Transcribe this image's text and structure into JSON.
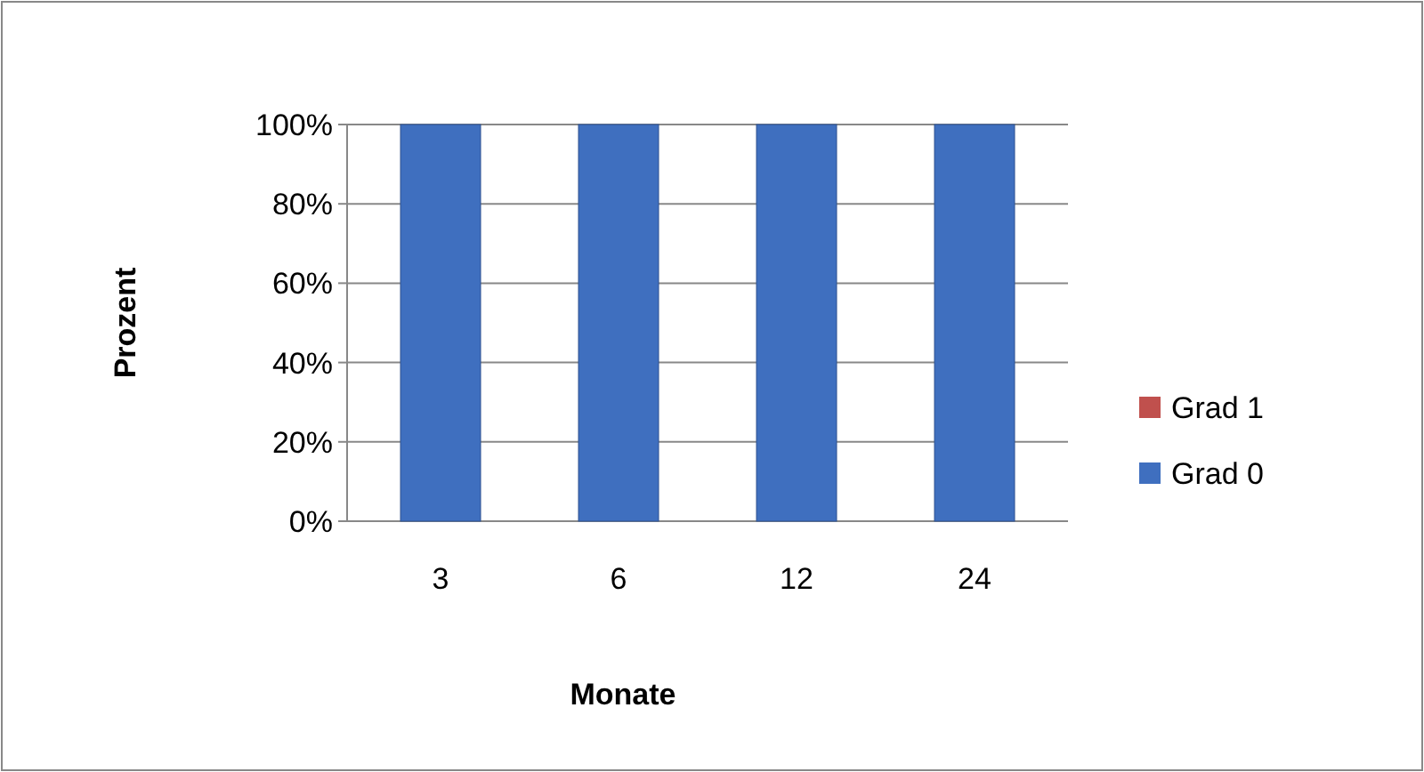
{
  "chart_data": {
    "type": "bar",
    "xlabel": "Monate",
    "ylabel": "Prozent",
    "categories": [
      "3",
      "6",
      "12",
      "24"
    ],
    "stacked": true,
    "series": [
      {
        "name": "Grad 0",
        "color": "#3f6fbf",
        "values": [
          100,
          100,
          100,
          100
        ]
      },
      {
        "name": "Grad 1",
        "color": "#c0504d",
        "values": [
          0,
          0,
          0,
          0
        ]
      }
    ],
    "ylim": [
      0,
      100
    ],
    "yticks": [
      {
        "value": 0,
        "label": "0%"
      },
      {
        "value": 20,
        "label": "20%"
      },
      {
        "value": 40,
        "label": "40%"
      },
      {
        "value": 60,
        "label": "60%"
      },
      {
        "value": 80,
        "label": "80%"
      },
      {
        "value": 100,
        "label": "100%"
      }
    ],
    "grid": "y",
    "legend": "right"
  }
}
